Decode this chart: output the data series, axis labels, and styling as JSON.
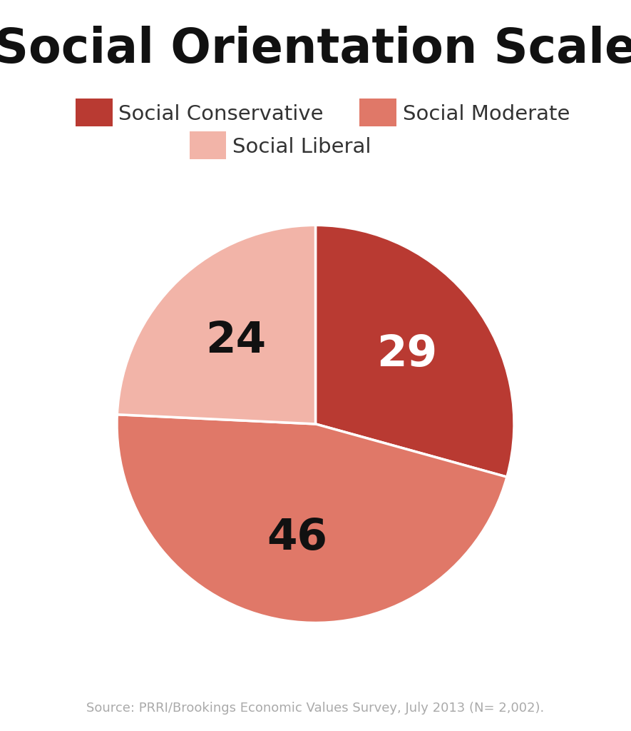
{
  "title": "Social Orientation Scale",
  "title_fontsize": 48,
  "title_fontweight": "bold",
  "values": [
    29,
    46,
    24
  ],
  "labels": [
    "Social Conservative",
    "Social Moderate",
    "Social Liberal"
  ],
  "colors": [
    "#B93A32",
    "#E07868",
    "#F2B4A8"
  ],
  "label_colors": [
    "#ffffff",
    "#111111",
    "#111111"
  ],
  "label_fontsize": 44,
  "label_fontweight": "bold",
  "legend_fontsize": 21,
  "source_text": "Source: PRRI/Brookings Economic Values Survey, July 2013 (N= 2,002).",
  "source_fontsize": 13,
  "source_color": "#aaaaaa",
  "background_color": "#ffffff",
  "startangle": 90
}
